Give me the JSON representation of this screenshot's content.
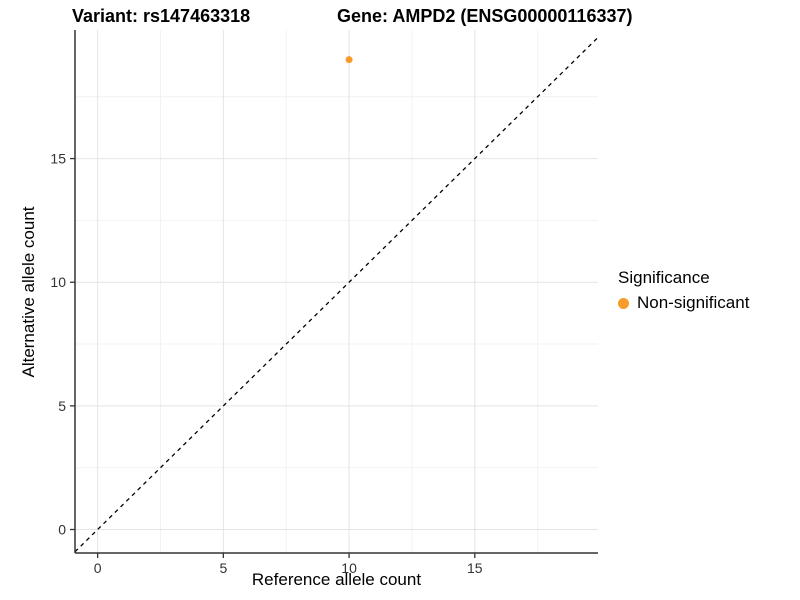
{
  "chart_data": {
    "type": "scatter",
    "title_left": "Variant: rs147463318",
    "title_right": "Gene: AMPD2 (ENSG00000116337)",
    "xlabel": "Reference allele count",
    "ylabel": "Alternative allele count",
    "points": [
      {
        "x": 10,
        "y": 19,
        "series": "Non-significant"
      }
    ],
    "identity_line": {
      "type": "y=x",
      "style": "dashed",
      "color": "#000000"
    },
    "xticks": [
      0,
      5,
      10,
      15
    ],
    "yticks": [
      0,
      5,
      10,
      15
    ],
    "minor_xticks": [
      2.5,
      7.5,
      12.5,
      17.5
    ],
    "minor_yticks": [
      2.5,
      7.5,
      12.5,
      17.5
    ],
    "xlim": [
      -0.9,
      19.9
    ],
    "ylim": [
      -0.95,
      20.2
    ],
    "grid": true,
    "legend": {
      "title": "Significance",
      "position": "right",
      "items": [
        {
          "label": "Non-significant",
          "color": "#F89B29",
          "marker": "dot"
        }
      ]
    },
    "colors": {
      "point": "#F89B29",
      "axis": "#333333",
      "grid_major": "#E4E4E4",
      "grid_minor": "#F2F2F2",
      "tick_label": "#333333"
    }
  }
}
